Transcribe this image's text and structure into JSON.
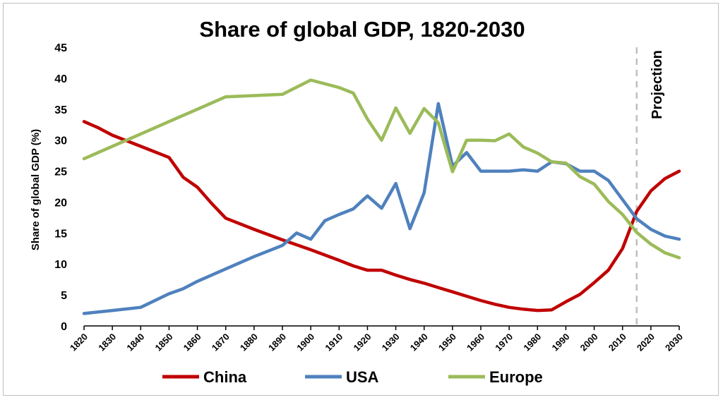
{
  "chart_data": {
    "type": "line",
    "title": "Share of global GDP, 1820-2030",
    "xlabel": "",
    "ylabel": "Share of global GDP (%)",
    "xlim": [
      1820,
      2030
    ],
    "ylim": [
      0,
      45
    ],
    "y_ticks": [
      0,
      5,
      10,
      15,
      20,
      25,
      30,
      35,
      40,
      45
    ],
    "x_ticks": [
      1820,
      1830,
      1840,
      1850,
      1860,
      1870,
      1880,
      1890,
      1900,
      1910,
      1920,
      1930,
      1940,
      1950,
      1960,
      1970,
      1980,
      1990,
      2000,
      2010,
      2020,
      2030
    ],
    "grid": false,
    "legend_position": "bottom",
    "projection_start": 2015,
    "annotation": "Projection",
    "series": [
      {
        "name": "China",
        "color": "#c00000",
        "x": [
          1820,
          1825,
          1830,
          1840,
          1850,
          1855,
          1860,
          1865,
          1870,
          1880,
          1890,
          1900,
          1910,
          1915,
          1920,
          1925,
          1930,
          1935,
          1940,
          1945,
          1950,
          1955,
          1960,
          1965,
          1970,
          1975,
          1980,
          1985,
          1990,
          1995,
          2000,
          2005,
          2010,
          2015,
          2020,
          2025,
          2030
        ],
        "values": [
          33,
          32.0,
          30.8,
          29.0,
          27.2,
          24.0,
          22.4,
          19.8,
          17.4,
          15.6,
          13.9,
          12.3,
          10.6,
          9.7,
          9.0,
          9.0,
          8.2,
          7.5,
          6.9,
          6.2,
          5.5,
          4.8,
          4.1,
          3.5,
          3.0,
          2.7,
          2.5,
          2.6,
          3.9,
          5.1,
          7.0,
          9.0,
          12.5,
          18.5,
          21.8,
          23.8,
          25.0
        ]
      },
      {
        "name": "USA",
        "color": "#4f81bd",
        "x": [
          1820,
          1830,
          1840,
          1850,
          1855,
          1860,
          1870,
          1880,
          1890,
          1895,
          1900,
          1905,
          1910,
          1915,
          1920,
          1925,
          1930,
          1935,
          1940,
          1945,
          1950,
          1955,
          1960,
          1965,
          1970,
          1975,
          1980,
          1985,
          1990,
          1995,
          2000,
          2005,
          2010,
          2015,
          2020,
          2025,
          2030
        ],
        "values": [
          2.0,
          2.5,
          3.0,
          5.2,
          6.0,
          7.2,
          9.2,
          11.2,
          13.0,
          15.0,
          14.0,
          17.0,
          18.0,
          18.9,
          21.0,
          19.0,
          23.0,
          15.7,
          21.5,
          35.9,
          25.8,
          28.0,
          25.0,
          25.0,
          25.0,
          25.2,
          25.0,
          26.5,
          26.2,
          25.0,
          25.0,
          23.5,
          20.4,
          17.3,
          15.6,
          14.5,
          14.0
        ]
      },
      {
        "name": "Europe",
        "color": "#9bbb59",
        "x": [
          1820,
          1830,
          1840,
          1850,
          1860,
          1870,
          1880,
          1890,
          1900,
          1910,
          1915,
          1920,
          1925,
          1930,
          1935,
          1940,
          1945,
          1950,
          1955,
          1960,
          1965,
          1970,
          1975,
          1980,
          1985,
          1990,
          1995,
          2000,
          2005,
          2010,
          2015,
          2020,
          2025,
          2030
        ],
        "values": [
          27.0,
          29.0,
          31.0,
          33.0,
          35.0,
          37.0,
          37.2,
          37.4,
          39.7,
          38.5,
          37.6,
          33.4,
          30.0,
          35.2,
          31.1,
          35.1,
          32.8,
          24.9,
          30.0,
          30.0,
          29.9,
          31.0,
          28.9,
          27.9,
          26.5,
          26.3,
          24.1,
          22.9,
          20.1,
          18.0,
          15.1,
          13.2,
          11.8,
          11.0
        ]
      }
    ]
  }
}
